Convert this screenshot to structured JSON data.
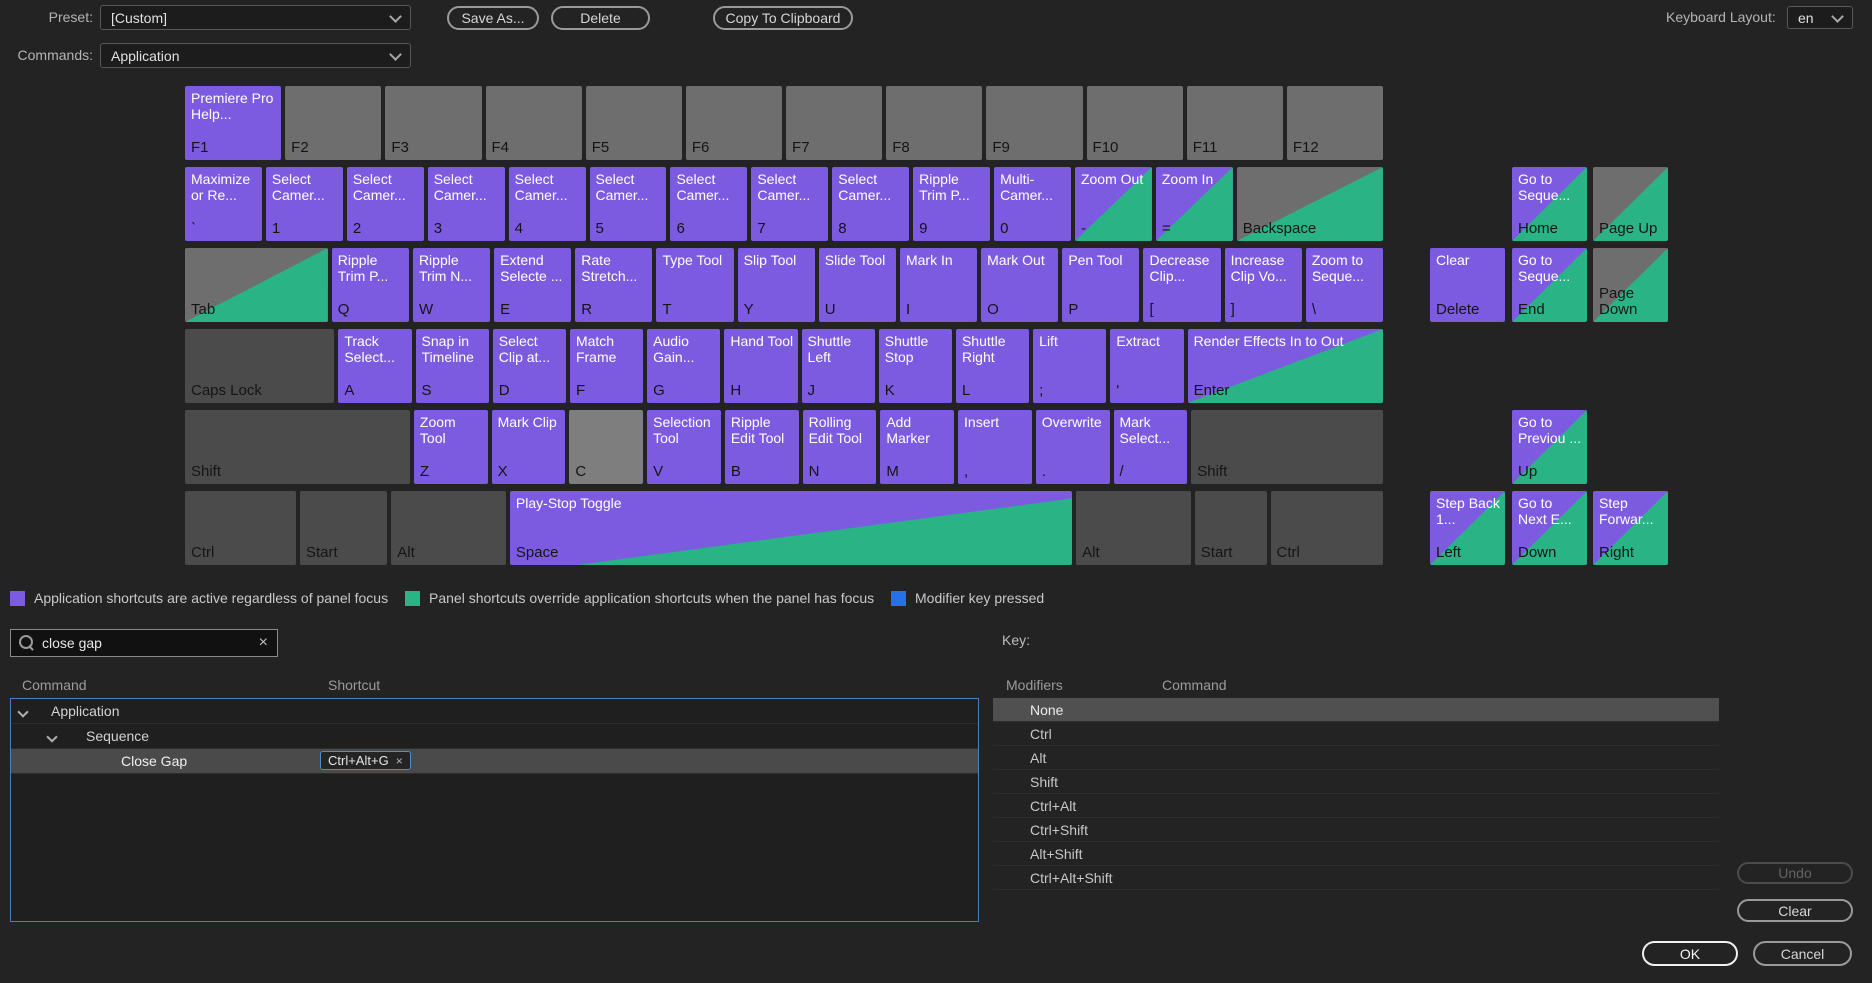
{
  "top_bar": {
    "preset_label": "Preset:",
    "preset_value": "[Custom]",
    "save_as": "Save As...",
    "delete": "Delete",
    "copy_to_clipboard": "Copy To Clipboard",
    "keyboard_layout_label": "Keyboard Layout:",
    "keyboard_layout_value": "en",
    "commands_label": "Commands:",
    "commands_value": "Application"
  },
  "colors": {
    "app_shortcut": "#7d5be1",
    "panel_shortcut": "#2ab385",
    "modifier_pressed": "#2472e8",
    "key_plain": "#6e6e6e",
    "key_mod": "#4b4b4b",
    "key_light": "#7e7e7e"
  },
  "keyboard": {
    "rows": [
      {
        "name": "function-row",
        "keys": [
          {
            "key": "F1",
            "cmd": "Premiere Pro Help...",
            "type": "app"
          },
          {
            "key": "F2",
            "type": "plain"
          },
          {
            "key": "F3",
            "type": "plain"
          },
          {
            "key": "F4",
            "type": "plain"
          },
          {
            "key": "F5",
            "type": "plain"
          },
          {
            "key": "F6",
            "type": "plain"
          },
          {
            "key": "F7",
            "type": "plain"
          },
          {
            "key": "F8",
            "type": "plain"
          },
          {
            "key": "F9",
            "type": "plain"
          },
          {
            "key": "F10",
            "type": "plain"
          },
          {
            "key": "F11",
            "type": "plain"
          },
          {
            "key": "F12",
            "type": "plain"
          }
        ]
      },
      {
        "name": "number-row",
        "keys": [
          {
            "key": "`",
            "cmd": "Maximize or Re...",
            "type": "app"
          },
          {
            "key": "1",
            "cmd": "Select Camer...",
            "type": "app"
          },
          {
            "key": "2",
            "cmd": "Select Camer...",
            "type": "app"
          },
          {
            "key": "3",
            "cmd": "Select Camer...",
            "type": "app"
          },
          {
            "key": "4",
            "cmd": "Select Camer...",
            "type": "app"
          },
          {
            "key": "5",
            "cmd": "Select Camer...",
            "type": "app"
          },
          {
            "key": "6",
            "cmd": "Select Camer...",
            "type": "app"
          },
          {
            "key": "7",
            "cmd": "Select Camer...",
            "type": "app"
          },
          {
            "key": "8",
            "cmd": "Select Camer...",
            "type": "app"
          },
          {
            "key": "9",
            "cmd": "Ripple Trim P...",
            "type": "app"
          },
          {
            "key": "0",
            "cmd": "Multi-Camer...",
            "type": "app"
          },
          {
            "key": "-",
            "cmd": "Zoom Out",
            "type": "both"
          },
          {
            "key": "=",
            "cmd": "Zoom In",
            "type": "both"
          },
          {
            "key": "Backspace",
            "type": "panel",
            "f": 1.9
          }
        ]
      },
      {
        "name": "tab-row",
        "keys": [
          {
            "key": "Tab",
            "type": "panel",
            "f": 1.85
          },
          {
            "key": "Q",
            "cmd": "Ripple Trim P...",
            "type": "app"
          },
          {
            "key": "W",
            "cmd": "Ripple Trim N...",
            "type": "app"
          },
          {
            "key": "E",
            "cmd": "Extend Selecte ...",
            "type": "app"
          },
          {
            "key": "R",
            "cmd": "Rate Stretch...",
            "type": "app"
          },
          {
            "key": "T",
            "cmd": "Type Tool",
            "type": "app"
          },
          {
            "key": "Y",
            "cmd": "Slip Tool",
            "type": "app"
          },
          {
            "key": "U",
            "cmd": "Slide Tool",
            "type": "app"
          },
          {
            "key": "I",
            "cmd": "Mark In",
            "type": "app"
          },
          {
            "key": "O",
            "cmd": "Mark Out",
            "type": "app"
          },
          {
            "key": "P",
            "cmd": "Pen Tool",
            "type": "app"
          },
          {
            "key": "[",
            "cmd": "Decrease Clip...",
            "type": "app"
          },
          {
            "key": "]",
            "cmd": "Increase Clip Vo...",
            "type": "app"
          },
          {
            "key": "\\",
            "cmd": "Zoom to Seque...",
            "type": "app"
          }
        ]
      },
      {
        "name": "caps-row",
        "keys": [
          {
            "key": "Caps Lock",
            "type": "mod",
            "f": 2.04
          },
          {
            "key": "A",
            "cmd": "Track Select...",
            "type": "app"
          },
          {
            "key": "S",
            "cmd": "Snap in Timeline",
            "type": "app"
          },
          {
            "key": "D",
            "cmd": "Select Clip at...",
            "type": "app"
          },
          {
            "key": "F",
            "cmd": "Match Frame",
            "type": "app"
          },
          {
            "key": "G",
            "cmd": "Audio Gain...",
            "type": "app"
          },
          {
            "key": "H",
            "cmd": "Hand Tool",
            "type": "app"
          },
          {
            "key": "J",
            "cmd": "Shuttle Left",
            "type": "app"
          },
          {
            "key": "K",
            "cmd": "Shuttle Stop",
            "type": "app"
          },
          {
            "key": "L",
            "cmd": "Shuttle Right",
            "type": "app"
          },
          {
            "key": ";",
            "cmd": "Lift",
            "type": "app"
          },
          {
            "key": "'",
            "cmd": "Extract",
            "type": "app"
          },
          {
            "key": "Enter",
            "cmd": "Render Effects In to Out",
            "type": "both",
            "f": 2.67
          }
        ]
      },
      {
        "name": "shift-row",
        "keys": [
          {
            "key": "Shift",
            "type": "mod",
            "f": 3.05
          },
          {
            "key": "Z",
            "cmd": "Zoom Tool",
            "type": "app"
          },
          {
            "key": "X",
            "cmd": "Mark Clip",
            "type": "app"
          },
          {
            "key": "C",
            "type": "light"
          },
          {
            "key": "V",
            "cmd": "Selection Tool",
            "type": "app"
          },
          {
            "key": "B",
            "cmd": "Ripple Edit Tool",
            "type": "app"
          },
          {
            "key": "N",
            "cmd": "Rolling Edit Tool",
            "type": "app"
          },
          {
            "key": "M",
            "cmd": "Add Marker",
            "type": "app"
          },
          {
            "key": ",",
            "cmd": "Insert",
            "type": "app"
          },
          {
            "key": ".",
            "cmd": "Overwrite",
            "type": "app"
          },
          {
            "key": "/",
            "cmd": "Mark Select...",
            "type": "app"
          },
          {
            "key": "Shift",
            "type": "mod",
            "f": 2.6
          }
        ]
      },
      {
        "name": "control-row",
        "keys": [
          {
            "key": "Ctrl",
            "type": "mod",
            "f": 1.5
          },
          {
            "key": "Start",
            "type": "mod",
            "f": 1.18
          },
          {
            "key": "Alt",
            "type": "mod",
            "f": 1.55
          },
          {
            "key": "Space",
            "cmd": "Play-Stop Toggle",
            "type": "both",
            "f": 7.6,
            "flat": true
          },
          {
            "key": "Alt",
            "type": "mod",
            "f": 1.55
          },
          {
            "key": "Start",
            "type": "mod",
            "f": 0.97
          },
          {
            "key": "Ctrl",
            "type": "mod",
            "f": 1.52
          }
        ]
      }
    ],
    "nav_keys": [
      {
        "key": "Home",
        "cmd": "Go to Seque...",
        "type": "both",
        "col": 1,
        "row": 0
      },
      {
        "key": "Page Up",
        "type": "panel",
        "col": 2,
        "row": 0
      },
      {
        "key": "Delete",
        "cmd": "Clear",
        "type": "app",
        "col": 0,
        "row": 1
      },
      {
        "key": "End",
        "cmd": "Go to Seque...",
        "type": "both",
        "col": 1,
        "row": 1
      },
      {
        "key": "Page Down",
        "type": "panel",
        "col": 2,
        "row": 1
      },
      {
        "key": "Up",
        "cmd": "Go to Previou ...",
        "type": "both",
        "col": 1,
        "row": 2
      },
      {
        "key": "Left",
        "cmd": "Step Back 1...",
        "type": "both",
        "col": 0,
        "row": 3
      },
      {
        "key": "Down",
        "cmd": "Go to Next E...",
        "type": "both",
        "col": 1,
        "row": 3
      },
      {
        "key": "Right",
        "cmd": "Step Forwar...",
        "type": "both",
        "col": 2,
        "row": 3
      }
    ]
  },
  "legend": [
    {
      "color": "#7d5be1",
      "label": "Application shortcuts are active regardless of panel focus"
    },
    {
      "color": "#2ab385",
      "label": "Panel shortcuts override application shortcuts when the panel has focus"
    },
    {
      "color": "#2472e8",
      "label": "Modifier key pressed"
    }
  ],
  "search": {
    "value": "close gap"
  },
  "key_section_label": "Key:",
  "command_table": {
    "headers": [
      "Command",
      "Shortcut"
    ],
    "rows": [
      {
        "label": "Application",
        "indent": 0,
        "expanded": true,
        "selected": false
      },
      {
        "label": "Sequence",
        "indent": 1,
        "expanded": true,
        "selected": false
      },
      {
        "label": "Close Gap",
        "indent": 2,
        "selected": true,
        "shortcut": "Ctrl+Alt+G"
      }
    ]
  },
  "modifier_table": {
    "headers": [
      "Modifiers",
      "Command"
    ],
    "rows": [
      "None",
      "Ctrl",
      "Alt",
      "Shift",
      "Ctrl+Alt",
      "Ctrl+Shift",
      "Alt+Shift",
      "Ctrl+Alt+Shift"
    ],
    "selected_index": 0
  },
  "buttons": {
    "undo": "Undo",
    "clear": "Clear",
    "ok": "OK",
    "cancel": "Cancel"
  },
  "icons": {
    "close_x": "×"
  }
}
